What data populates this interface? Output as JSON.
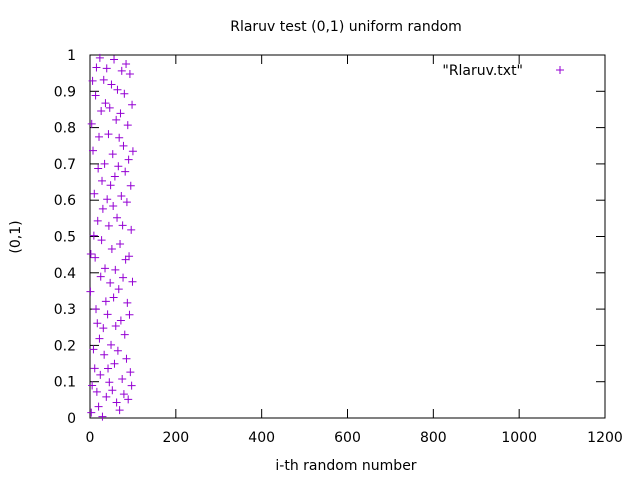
{
  "chart_data": {
    "type": "scatter",
    "title": "Rlaruv test (0,1) uniform random",
    "xlabel": "i-th random number",
    "ylabel": "(0,1)",
    "xlim": [
      0,
      1200
    ],
    "ylim": [
      0,
      1
    ],
    "xticks": [
      0,
      200,
      400,
      600,
      800,
      1000,
      1200
    ],
    "yticks": [
      0,
      0.1,
      0.2,
      0.3,
      0.4,
      0.5,
      0.6,
      0.7,
      0.8,
      0.9,
      1
    ],
    "xtick_labels": [
      "0",
      "200",
      "400",
      "600",
      "800",
      "1000",
      "1200"
    ],
    "ytick_labels": [
      "0",
      "0.1",
      "0.2",
      "0.3",
      "0.4",
      "0.5",
      "0.6",
      "0.7",
      "0.8",
      "0.9",
      "1"
    ],
    "grid": false,
    "legend_position": "top-right",
    "marker": "plus",
    "series": [
      {
        "name": "\"Rlaruv.txt\"",
        "color": "#9400d3",
        "x_start": 1,
        "x_step": 1,
        "y": [
          0.3482,
          0.4518,
          0.0147,
          0.8102,
          0.0894,
          0.9286,
          0.7364,
          0.1891,
          0.5023,
          0.6178,
          0.1367,
          0.4419,
          0.8883,
          0.3001,
          0.9657,
          0.0721,
          0.2609,
          0.5432,
          0.6875,
          0.0312,
          0.7744,
          0.2187,
          0.9921,
          0.1188,
          0.3895,
          0.8456,
          0.4901,
          0.6532,
          0.0039,
          0.5761,
          0.2476,
          0.9315,
          0.1743,
          0.7001,
          0.4123,
          0.8675,
          0.3214,
          0.0581,
          0.9632,
          0.6027,
          0.2854,
          0.1362,
          0.7819,
          0.5294,
          0.0986,
          0.8543,
          0.3721,
          0.6413,
          0.2015,
          0.9186,
          0.4657,
          0.0763,
          0.7268,
          0.5839,
          0.3318,
          0.9876,
          0.1495,
          0.6652,
          0.4081,
          0.2533,
          0.8214,
          0.0427,
          0.5517,
          0.9043,
          0.1851,
          0.6934,
          0.3549,
          0.7722,
          0.0218,
          0.4792,
          0.8391,
          0.2687,
          0.6115,
          0.9562,
          0.1076,
          0.5308,
          0.3867,
          0.7495,
          0.0659,
          0.8932,
          0.2298,
          0.6786,
          0.4364,
          0.9753,
          0.1632,
          0.5947,
          0.3172,
          0.8067,
          0.0514,
          0.7119,
          0.4456,
          0.2843,
          0.9477,
          0.1264,
          0.6398,
          0.5182,
          0.0892,
          0.8629,
          0.3755,
          0.7348
        ]
      }
    ]
  }
}
